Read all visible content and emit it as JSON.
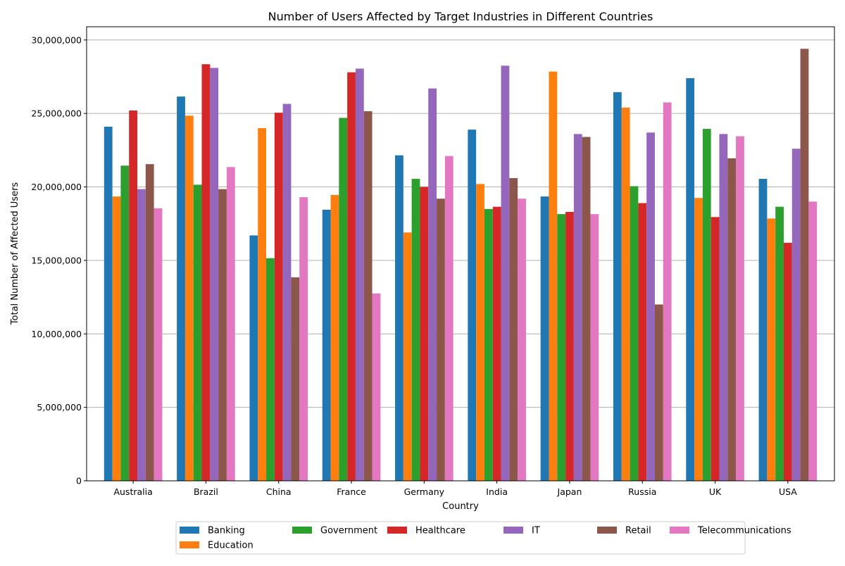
{
  "chart_data": {
    "type": "bar",
    "title": "Number of Users Affected by Target Industries in Different Countries",
    "xlabel": "Country",
    "ylabel": "Total Number of Affected Users",
    "ylim": [
      0,
      30900000
    ],
    "yticks": [
      0,
      5000000,
      10000000,
      15000000,
      20000000,
      25000000,
      30000000
    ],
    "ytick_labels": [
      "0",
      "5,000,000",
      "10,000,000",
      "15,000,000",
      "20,000,000",
      "25,000,000",
      "30,000,000"
    ],
    "grid": "y",
    "legend_position": "bottom",
    "categories": [
      "Australia",
      "Brazil",
      "China",
      "France",
      "Germany",
      "India",
      "Japan",
      "Russia",
      "UK",
      "USA"
    ],
    "series": [
      {
        "name": "Banking",
        "color": "#1f77b4",
        "values": [
          24100000,
          26150000,
          16700000,
          18450000,
          22150000,
          23900000,
          19350000,
          26450000,
          27400000,
          20550000
        ]
      },
      {
        "name": "Education",
        "color": "#ff7f0e",
        "values": [
          19350000,
          24850000,
          24000000,
          19450000,
          16900000,
          20200000,
          27850000,
          25400000,
          19250000,
          17850000
        ]
      },
      {
        "name": "Government",
        "color": "#2ca02c",
        "values": [
          21450000,
          20150000,
          15150000,
          24700000,
          20550000,
          18500000,
          18150000,
          20050000,
          23950000,
          18650000
        ]
      },
      {
        "name": "Healthcare",
        "color": "#d62728",
        "values": [
          25200000,
          28350000,
          25050000,
          27800000,
          20000000,
          18650000,
          18300000,
          18900000,
          17950000,
          16200000
        ]
      },
      {
        "name": "IT",
        "color": "#9467bd",
        "values": [
          19850000,
          28100000,
          25650000,
          28050000,
          26700000,
          28250000,
          23600000,
          23700000,
          23600000,
          22600000
        ]
      },
      {
        "name": "Retail",
        "color": "#8c564b",
        "values": [
          21550000,
          19850000,
          13850000,
          25150000,
          19200000,
          20600000,
          23400000,
          12000000,
          21950000,
          29400000
        ]
      },
      {
        "name": "Telecommunications",
        "color": "#e377c2",
        "values": [
          18550000,
          21350000,
          19300000,
          12750000,
          22100000,
          19200000,
          18150000,
          25750000,
          23450000,
          19000000
        ]
      }
    ]
  }
}
